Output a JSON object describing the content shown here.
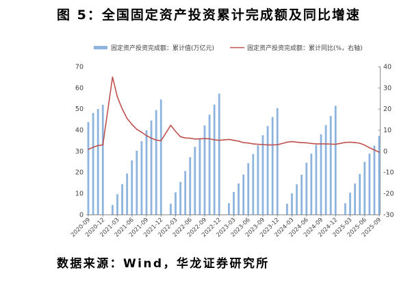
{
  "source": "数据来源：Wind，华龙证券研究所",
  "chart_data": {
    "type": "bar",
    "title": "图 5：全国固定资产投资累计完成额及同比增速",
    "legend": "top",
    "grid": false,
    "x_range": [
      "2020-09",
      "2025-09"
    ],
    "xticks": [
      "2020-09",
      "2020-12",
      "2021-03",
      "2021-06",
      "2021-09",
      "2021-12",
      "2022-03",
      "2022-06",
      "2022-09",
      "2022-12",
      "2023-03",
      "2023-06",
      "2023-09",
      "2023-12",
      "2024-03",
      "2024-06",
      "2024-09",
      "2024-12",
      "2025-03",
      "2025-06",
      "2025-09"
    ],
    "y_left": {
      "range": [
        0,
        70
      ],
      "ticks": [
        0,
        10,
        20,
        30,
        40,
        50,
        60,
        70
      ]
    },
    "y_right": {
      "range": [
        -30,
        40
      ],
      "ticks": [
        -30,
        -20,
        -10,
        0,
        10,
        20,
        30,
        40
      ]
    },
    "x": [
      "2020-09",
      "2020-10",
      "2020-11",
      "2020-12",
      "2021-02",
      "2021-03",
      "2021-04",
      "2021-05",
      "2021-06",
      "2021-07",
      "2021-08",
      "2021-09",
      "2021-10",
      "2021-11",
      "2021-12",
      "2022-02",
      "2022-03",
      "2022-04",
      "2022-05",
      "2022-06",
      "2022-07",
      "2022-08",
      "2022-09",
      "2022-10",
      "2022-11",
      "2022-12",
      "2023-02",
      "2023-03",
      "2023-04",
      "2023-05",
      "2023-06",
      "2023-07",
      "2023-08",
      "2023-09",
      "2023-10",
      "2023-11",
      "2023-12",
      "2024-02",
      "2024-03",
      "2024-04",
      "2024-05",
      "2024-06",
      "2024-07",
      "2024-08",
      "2024-09",
      "2024-10",
      "2024-11",
      "2024-12",
      "2025-02",
      "2025-03",
      "2025-04",
      "2025-05",
      "2025-06",
      "2025-07",
      "2025-08",
      "2025-09"
    ],
    "series": [
      {
        "name": "固定资产投资完成额：累计值(万亿元)",
        "type": "bar",
        "axis": "left",
        "color": "#8db4de",
        "values": [
          43.7,
          48.0,
          49.9,
          51.9,
          4.5,
          9.6,
          14.4,
          19.4,
          25.6,
          30.2,
          34.7,
          39.8,
          44.5,
          49.4,
          54.4,
          5.1,
          10.5,
          15.4,
          20.6,
          27.1,
          32.0,
          36.1,
          42.1,
          47.2,
          52.0,
          57.2,
          5.4,
          10.7,
          14.7,
          18.9,
          24.3,
          28.6,
          32.7,
          37.5,
          41.9,
          46.1,
          50.3,
          5.1,
          10.0,
          14.3,
          18.8,
          24.5,
          28.8,
          32.9,
          37.9,
          42.3,
          46.6,
          51.4,
          5.3,
          10.3,
          14.7,
          19.2,
          24.9,
          28.8,
          32.6,
          37.2
        ]
      },
      {
        "name": "固定资产投资完成额：累计同比(%，右轴)",
        "type": "line",
        "axis": "right",
        "color": "#c0504d",
        "values": [
          0.8,
          1.8,
          2.6,
          2.9,
          35.0,
          25.6,
          19.9,
          15.4,
          12.6,
          10.3,
          8.9,
          7.3,
          6.1,
          5.2,
          4.9,
          12.2,
          9.3,
          6.8,
          6.2,
          6.1,
          5.7,
          5.8,
          5.9,
          5.8,
          5.3,
          5.1,
          5.5,
          5.1,
          4.7,
          4.0,
          3.8,
          3.4,
          3.2,
          3.1,
          2.9,
          2.9,
          3.0,
          4.2,
          4.5,
          4.2,
          4.0,
          3.9,
          3.6,
          3.4,
          3.4,
          3.4,
          3.3,
          3.2,
          4.1,
          4.2,
          4.0,
          3.7,
          2.8,
          1.6,
          0.5,
          -0.5
        ]
      }
    ]
  }
}
